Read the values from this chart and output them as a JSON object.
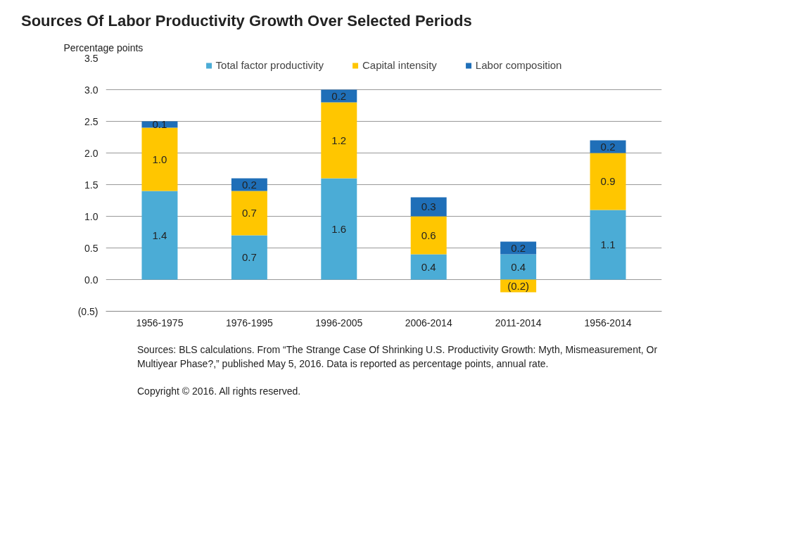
{
  "chart_data": {
    "type": "bar",
    "stacked": true,
    "title": "Sources Of Labor Productivity Growth Over Selected Periods",
    "ylabel": "Percentage points",
    "categories": [
      "1956-1975",
      "1976-1995",
      "1996-2005",
      "2006-2014",
      "2011-2014",
      "1956-2014"
    ],
    "series": [
      {
        "name": "Total factor productivity",
        "color": "#4bacd6",
        "values": [
          1.4,
          0.7,
          1.6,
          0.4,
          0.4,
          1.1
        ],
        "value_labels": [
          "1.4",
          "0.7",
          "1.6",
          "0.4",
          "0.4",
          "1.1"
        ]
      },
      {
        "name": "Capital intensity",
        "color": "#ffc600",
        "values": [
          1.0,
          0.7,
          1.2,
          0.6,
          -0.2,
          0.9
        ],
        "value_labels": [
          "1.0",
          "0.7",
          "1.2",
          "0.6",
          "(0.2)",
          "0.9"
        ]
      },
      {
        "name": "Labor composition",
        "color": "#1f6fb8",
        "values": [
          0.1,
          0.2,
          0.2,
          0.3,
          0.2,
          0.2
        ],
        "value_labels": [
          "0.1",
          "0.2",
          "0.2",
          "0.3",
          "0.2",
          "0.2"
        ]
      }
    ],
    "ylim": [
      -0.5,
      3.5
    ],
    "yticks": [
      {
        "value": -0.5,
        "label": "(0.5)"
      },
      {
        "value": 0,
        "label": "0.0"
      },
      {
        "value": 0.5,
        "label": "0.5"
      },
      {
        "value": 1,
        "label": "1.0"
      },
      {
        "value": 1.5,
        "label": "1.5"
      },
      {
        "value": 2,
        "label": "2.0"
      },
      {
        "value": 2.5,
        "label": "2.5"
      },
      {
        "value": 3,
        "label": "3.0"
      },
      {
        "value": 3.5,
        "label": "3.5"
      }
    ],
    "grid": "y",
    "legend": "top",
    "annotations": [
      "Sources: BLS calculations. From “The Strange Case Of Shrinking U.S. Productivity Growth: Myth, Mismeasurement, Or Multiyear Phase?,” published May 5, 2016. Data is reported as percentage points, annual rate.",
      "Copyright © 2016. All rights reserved."
    ]
  }
}
